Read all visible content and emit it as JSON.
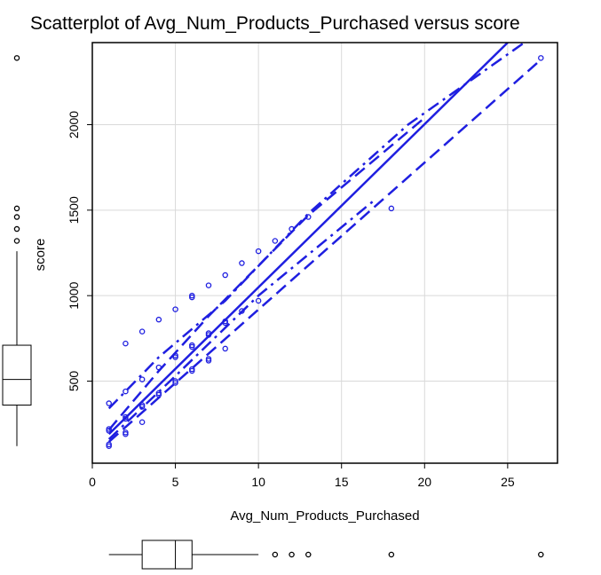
{
  "chart_data": {
    "type": "scatter",
    "title": "Scatterplot of Avg_Num_Products_Purchased versus score",
    "xlabel": "Avg_Num_Products_Purchased",
    "ylabel": "score",
    "xlim": [
      0,
      28
    ],
    "ylim": [
      20,
      2480
    ],
    "x_ticks": [
      0,
      5,
      10,
      15,
      20,
      25
    ],
    "y_ticks": [
      500,
      1000,
      1500,
      2000
    ],
    "grid": true,
    "point_color": "#1f1fe0",
    "line_color": "#1f1fe0",
    "points": [
      {
        "x": 1,
        "y": 120
      },
      {
        "x": 1,
        "y": 130
      },
      {
        "x": 1,
        "y": 210
      },
      {
        "x": 1,
        "y": 220
      },
      {
        "x": 1,
        "y": 370
      },
      {
        "x": 2,
        "y": 190
      },
      {
        "x": 2,
        "y": 200
      },
      {
        "x": 2,
        "y": 280
      },
      {
        "x": 2,
        "y": 290
      },
      {
        "x": 2,
        "y": 440
      },
      {
        "x": 2,
        "y": 720
      },
      {
        "x": 3,
        "y": 260
      },
      {
        "x": 3,
        "y": 350
      },
      {
        "x": 3,
        "y": 360
      },
      {
        "x": 3,
        "y": 510
      },
      {
        "x": 3,
        "y": 790
      },
      {
        "x": 4,
        "y": 420
      },
      {
        "x": 4,
        "y": 430
      },
      {
        "x": 4,
        "y": 580
      },
      {
        "x": 4,
        "y": 860
      },
      {
        "x": 5,
        "y": 490
      },
      {
        "x": 5,
        "y": 500
      },
      {
        "x": 5,
        "y": 640
      },
      {
        "x": 5,
        "y": 650
      },
      {
        "x": 5,
        "y": 920
      },
      {
        "x": 6,
        "y": 560
      },
      {
        "x": 6,
        "y": 570
      },
      {
        "x": 6,
        "y": 700
      },
      {
        "x": 6,
        "y": 710
      },
      {
        "x": 6,
        "y": 990
      },
      {
        "x": 6,
        "y": 1000
      },
      {
        "x": 7,
        "y": 620
      },
      {
        "x": 7,
        "y": 630
      },
      {
        "x": 7,
        "y": 770
      },
      {
        "x": 7,
        "y": 780
      },
      {
        "x": 7,
        "y": 1060
      },
      {
        "x": 8,
        "y": 690
      },
      {
        "x": 8,
        "y": 840
      },
      {
        "x": 8,
        "y": 850
      },
      {
        "x": 8,
        "y": 1120
      },
      {
        "x": 9,
        "y": 910
      },
      {
        "x": 9,
        "y": 1190
      },
      {
        "x": 10,
        "y": 970
      },
      {
        "x": 10,
        "y": 1260
      },
      {
        "x": 11,
        "y": 1320
      },
      {
        "x": 12,
        "y": 1390
      },
      {
        "x": 13,
        "y": 1460
      },
      {
        "x": 18,
        "y": 1510
      },
      {
        "x": 27,
        "y": 2390
      }
    ],
    "lines": [
      {
        "style": "solid",
        "points": [
          [
            1,
            190
          ],
          [
            25,
            2480
          ]
        ]
      },
      {
        "style": "dashed",
        "points": [
          [
            1,
            145
          ],
          [
            27,
            2380
          ]
        ]
      },
      {
        "style": "dashed",
        "points": [
          [
            1,
            215
          ],
          [
            4,
            560
          ],
          [
            7,
            880
          ],
          [
            13,
            1470
          ],
          [
            20,
            2040
          ]
        ]
      },
      {
        "style": "dashdot",
        "points": [
          [
            1,
            340
          ],
          [
            4,
            640
          ],
          [
            8,
            970
          ],
          [
            13,
            1480
          ],
          [
            19,
            2000
          ],
          [
            26,
            2480
          ]
        ]
      },
      {
        "style": "dashdot",
        "points": [
          [
            1,
            160
          ],
          [
            5,
            530
          ],
          [
            10,
            1000
          ],
          [
            17,
            1560
          ]
        ]
      }
    ],
    "boxplot_x": {
      "min": 1,
      "q1": 3,
      "median": 5,
      "q3": 6,
      "max": 10,
      "outliers": [
        11,
        12,
        13,
        18,
        27
      ]
    },
    "boxplot_y": {
      "min": 120,
      "q1": 360,
      "median": 510,
      "q3": 710,
      "max": 1260,
      "outliers": [
        1320,
        1390,
        1460,
        1510,
        2390
      ]
    }
  }
}
